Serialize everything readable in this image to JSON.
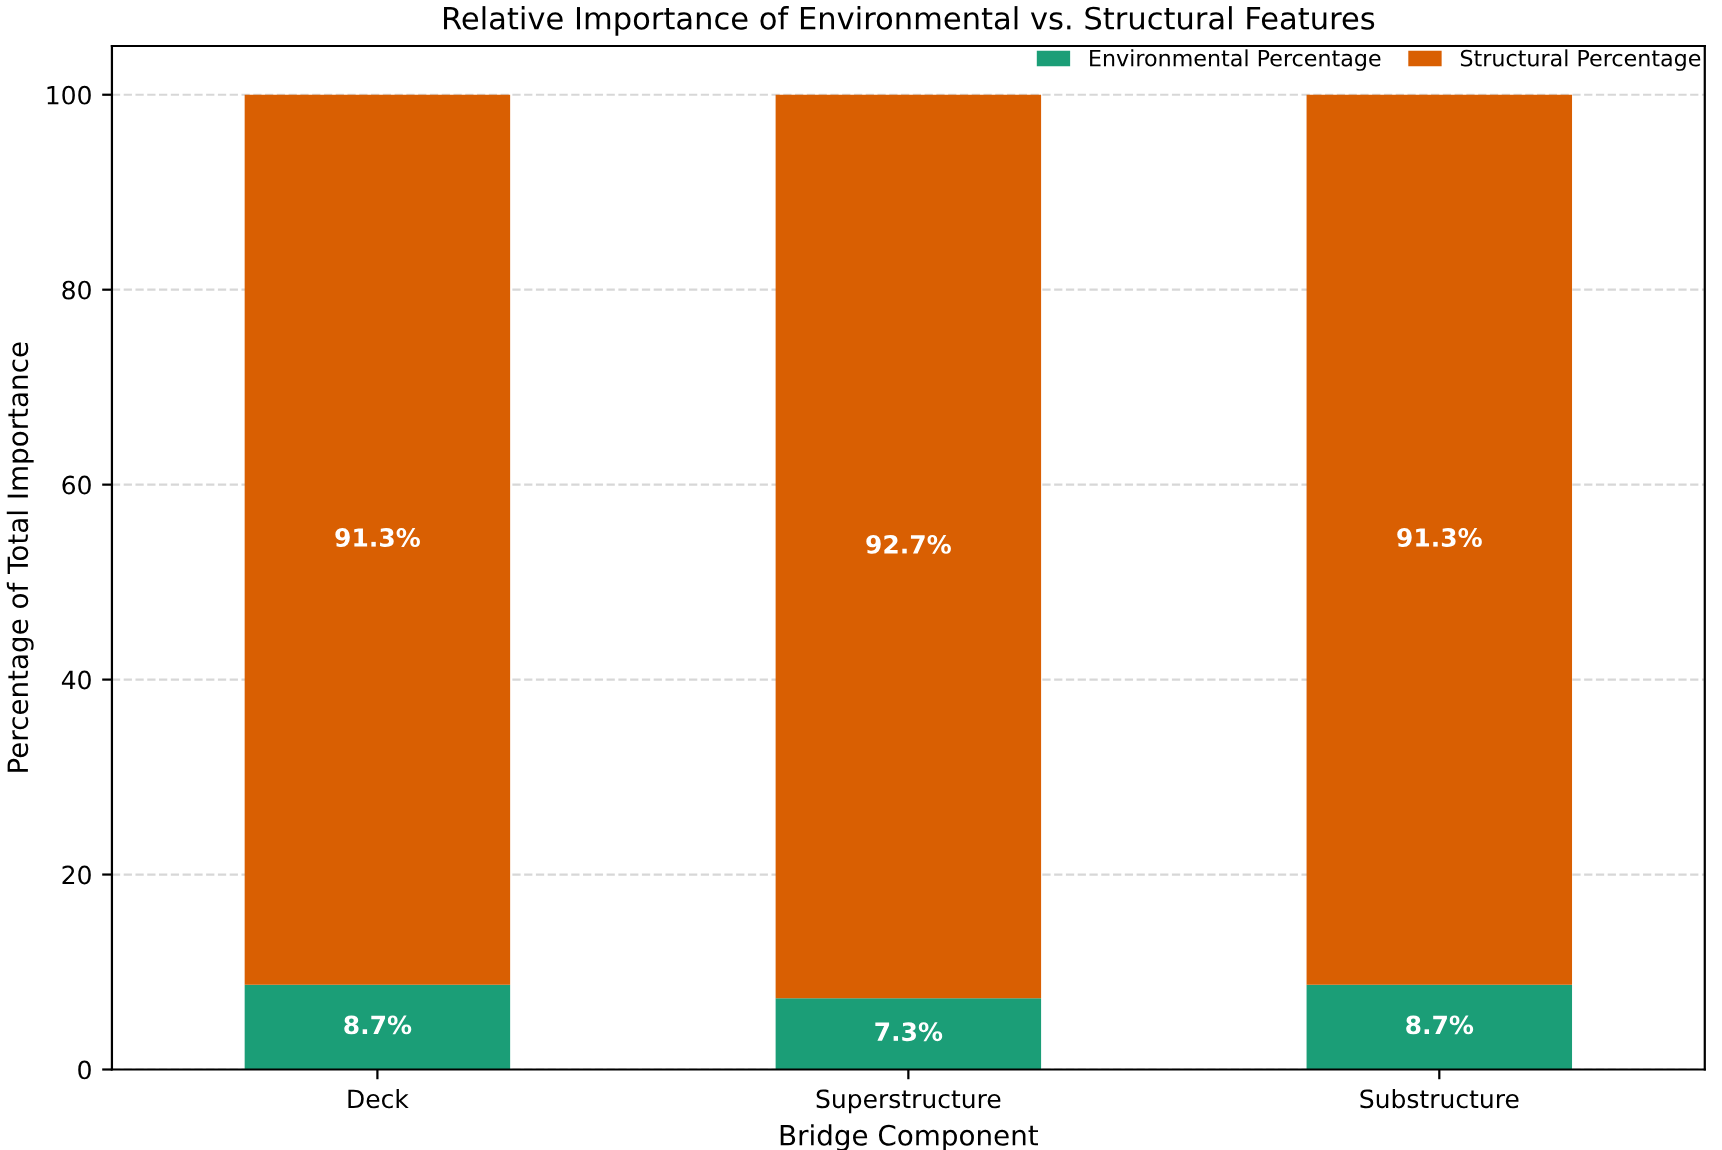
{
  "chart_data": {
    "type": "bar",
    "stacked": true,
    "title": "Relative Importance of Environmental vs. Structural Features",
    "xlabel": "Bridge Component",
    "ylabel": "Percentage of Total Importance",
    "categories": [
      "Deck",
      "Superstructure",
      "Substructure"
    ],
    "series": [
      {
        "name": "Environmental Percentage",
        "color": "#1b9e77",
        "values": [
          8.7,
          7.3,
          8.7
        ],
        "value_labels": [
          "8.7%",
          "7.3%",
          "8.7%"
        ]
      },
      {
        "name": "Structural Percentage",
        "color": "#d95f02",
        "values": [
          91.3,
          92.7,
          91.3
        ],
        "value_labels": [
          "91.3%",
          "92.7%",
          "91.3%"
        ]
      }
    ],
    "ylim": [
      0,
      105
    ],
    "yticks": [
      0,
      20,
      40,
      60,
      80,
      100
    ],
    "grid": "y",
    "legend": "top right"
  }
}
